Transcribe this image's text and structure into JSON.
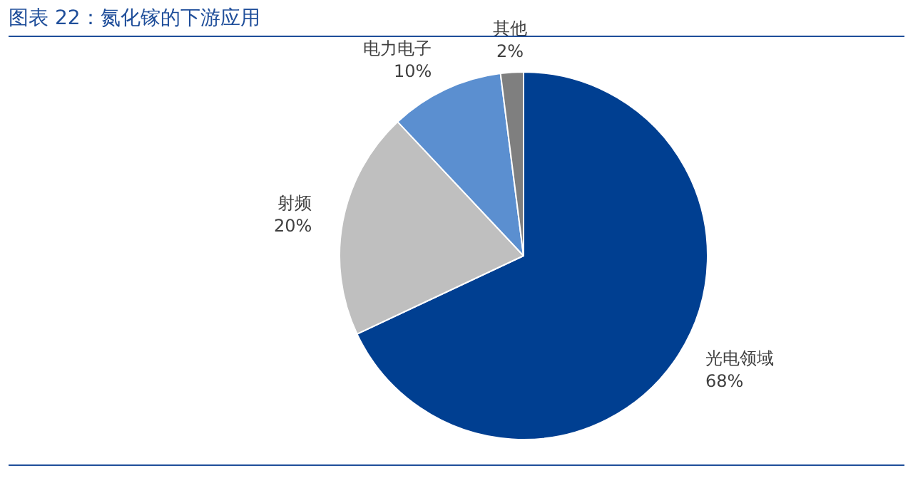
{
  "chart_data": {
    "type": "pie",
    "title": "图表 22：氮化镓的下游应用",
    "categories": [
      "光电领域",
      "射频",
      "电力电子",
      "其他"
    ],
    "values": [
      68,
      20,
      10,
      2
    ],
    "value_labels": [
      "68%",
      "20%",
      "10%",
      "2%"
    ],
    "colors": [
      "#003f91",
      "#bfbfbf",
      "#5b8fd0",
      "#7f7f7f"
    ],
    "legend": false
  }
}
